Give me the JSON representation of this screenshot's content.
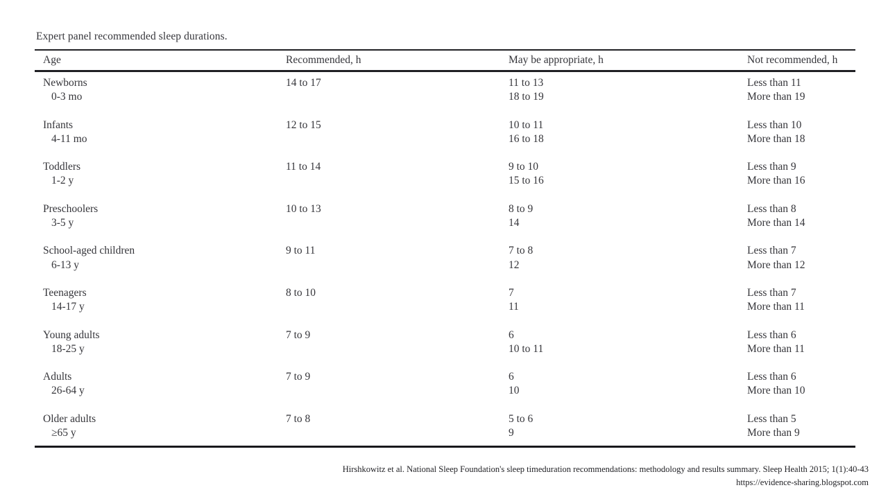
{
  "page": {
    "title": "Expert panel recommended sleep durations."
  },
  "table": {
    "columns": [
      "Age",
      "Recommended, h",
      "May be appropriate, h",
      "Not recommended, h"
    ],
    "rows": [
      {
        "age_group": "Newborns",
        "age_range": "0-3 mo",
        "recommended": "14 to 17",
        "may": [
          "11 to 13",
          "18 to 19"
        ],
        "not": [
          "Less than 11",
          "More than 19"
        ]
      },
      {
        "age_group": "Infants",
        "age_range": "4-11 mo",
        "recommended": "12 to 15",
        "may": [
          "10 to 11",
          "16 to 18"
        ],
        "not": [
          "Less than 10",
          "More than 18"
        ]
      },
      {
        "age_group": "Toddlers",
        "age_range": "1-2 y",
        "recommended": "11 to 14",
        "may": [
          "9 to 10",
          "15 to 16"
        ],
        "not": [
          "Less than 9",
          "More than 16"
        ]
      },
      {
        "age_group": "Preschoolers",
        "age_range": "3-5 y",
        "recommended": "10 to 13",
        "may": [
          "8 to 9",
          "14"
        ],
        "not": [
          "Less than 8",
          "More than 14"
        ]
      },
      {
        "age_group": "School-aged children",
        "age_range": "6-13 y",
        "recommended": "9 to 11",
        "may": [
          "7 to 8",
          "12"
        ],
        "not": [
          "Less than 7",
          "More than 12"
        ]
      },
      {
        "age_group": "Teenagers",
        "age_range": "14-17 y",
        "recommended": "8 to 10",
        "may": [
          "7",
          "11"
        ],
        "not": [
          "Less than 7",
          "More than 11"
        ]
      },
      {
        "age_group": "Young adults",
        "age_range": "18-25 y",
        "recommended": "7 to 9",
        "may": [
          "6",
          "10 to 11"
        ],
        "not": [
          "Less than 6",
          "More than 11"
        ]
      },
      {
        "age_group": "Adults",
        "age_range": "26-64 y",
        "recommended": "7 to 9",
        "may": [
          "6",
          "10"
        ],
        "not": [
          "Less than 6",
          "More than 10"
        ]
      },
      {
        "age_group": "Older adults",
        "age_range": "≥65 y",
        "recommended": "7 to 8",
        "may": [
          "5 to 6",
          "9"
        ],
        "not": [
          "Less than 5",
          "More than 9"
        ]
      }
    ]
  },
  "footer": {
    "citation": "Hirshkowitz et al. National Sleep Foundation's sleep timeduration recommendations:  methodology and results summary. Sleep Health 2015; 1(1):40-43",
    "url": "https://evidence-sharing.blogspot.com"
  },
  "colors": {
    "background": "#ffffff",
    "text": "#35353a",
    "rule": "#202024"
  }
}
